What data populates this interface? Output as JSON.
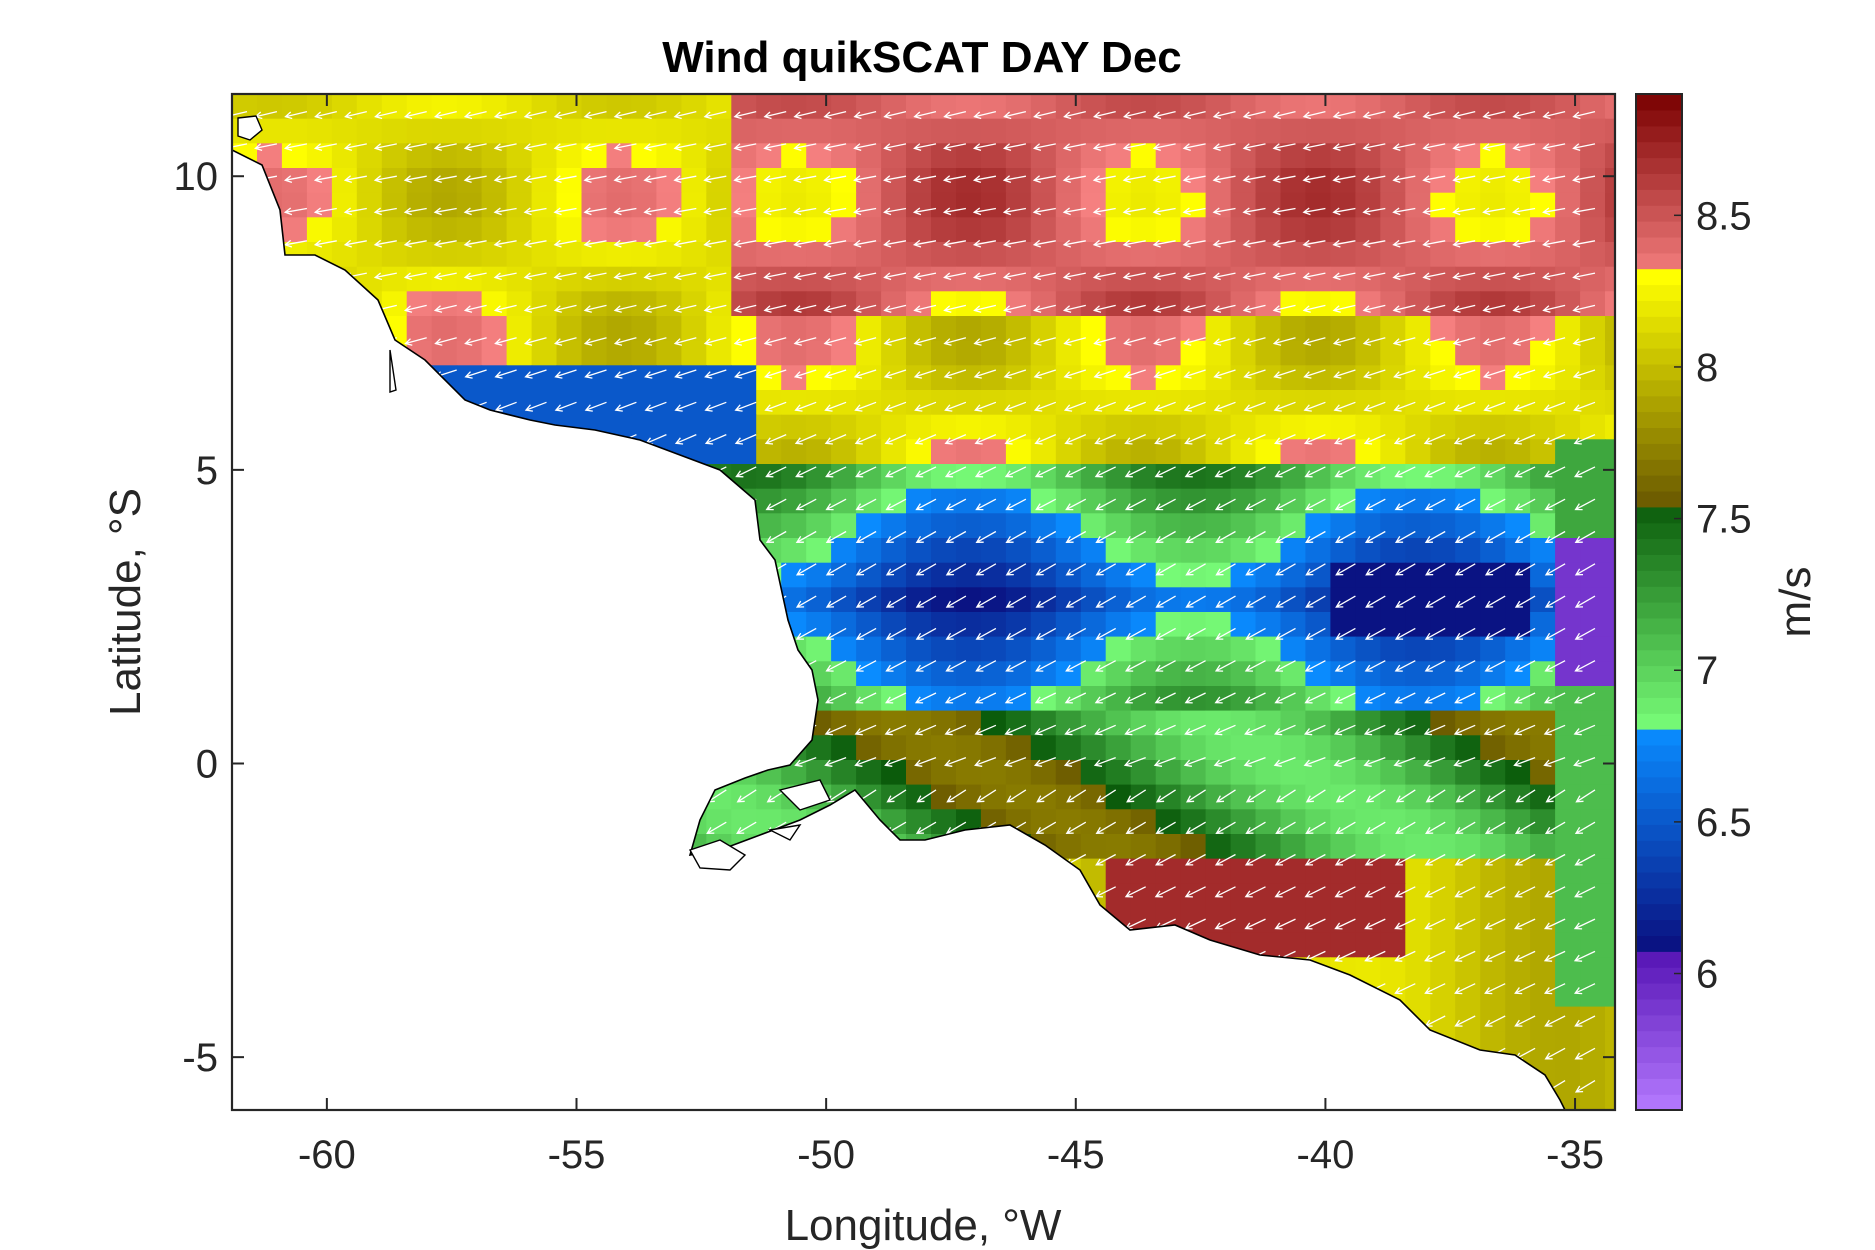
{
  "chart_data": {
    "type": "heatmap",
    "title": "Wind quikSCAT DAY Dec",
    "xlabel": "Longitude, °W",
    "ylabel": "Latitude, °S",
    "xlim": [
      -61.9,
      -34.2
    ],
    "ylim": [
      -5.9,
      11.4
    ],
    "xticks": [
      -60,
      -55,
      -50,
      -45,
      -40,
      -35
    ],
    "yticks": [
      -5,
      0,
      5,
      10
    ],
    "colorbar": {
      "label": "m/s",
      "range": [
        5.55,
        8.9
      ],
      "ticks": [
        6,
        6.5,
        7,
        7.5,
        8,
        8.5
      ],
      "colors": [
        {
          "from": 5.55,
          "to": 6.05,
          "c1": "#b57aff",
          "c2": "#5a18b8"
        },
        {
          "from": 6.05,
          "to": 6.8,
          "c1": "#0a0a7a",
          "c2": "#0a8cff"
        },
        {
          "from": 6.8,
          "to": 7.55,
          "c1": "#7aff7a",
          "c2": "#0a5a0a"
        },
        {
          "from": 7.55,
          "to": 8.3,
          "c1": "#6b5a00",
          "c2": "#ffff00"
        },
        {
          "from": 8.3,
          "to": 8.9,
          "c1": "#f58080",
          "c2": "#7a0000"
        }
      ]
    },
    "overlay": "white wind-direction arrows (quiver), mostly pointing west-southwest",
    "regions": [
      {
        "zone": "north open ocean (lat > 5.5)",
        "speed_ms": [
          8.0,
          8.6
        ]
      },
      {
        "zone": "coastal band near 6 N, -57 to -52",
        "speed_ms": [
          6.2,
          6.8
        ]
      },
      {
        "zone": "equatorial band lat 1 to 4.5",
        "speed_ms": [
          6.0,
          7.2
        ]
      },
      {
        "zone": "east edge lat 1 to 4",
        "speed_ms": [
          5.8,
          6.2
        ]
      },
      {
        "zone": "south of equator lat -2 to 1",
        "speed_ms": [
          7.0,
          8.0
        ]
      },
      {
        "zone": "coastal strip lat -2.5, -44 to -39",
        "speed_ms": [
          8.4,
          8.8
        ]
      }
    ]
  }
}
